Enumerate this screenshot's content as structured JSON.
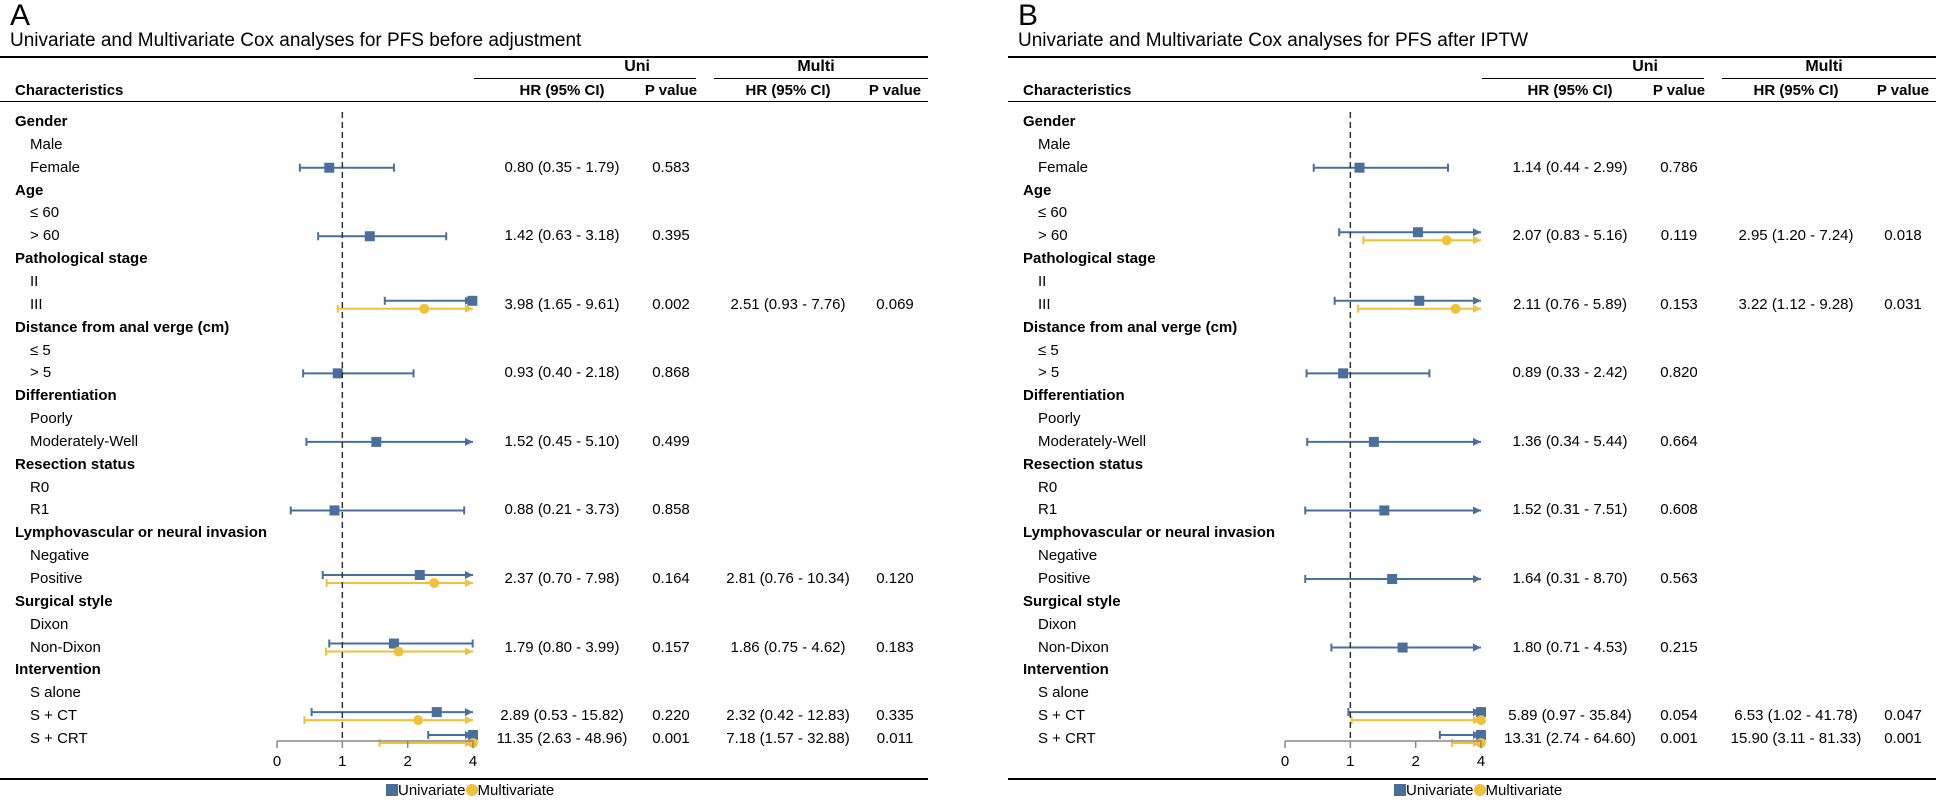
{
  "colors": {
    "uni": "#4a6f9a",
    "multi": "#f0c239",
    "ref_line": "#333333",
    "axis": "#888888"
  },
  "legend": {
    "uni": "Univariate",
    "multi": "Multivariate"
  },
  "headers": {
    "characteristics": "Characteristics",
    "uni": "Uni",
    "multi": "Multi",
    "hr": "HR (95% CI)",
    "p": "P value"
  },
  "chart_data": [
    {
      "type": "forest",
      "panel": "A",
      "title": "Univariate and Multivariate Cox analyses for PFS before adjustment",
      "x_ticks": [
        0,
        1,
        2,
        4
      ],
      "xlim": [
        0,
        4
      ],
      "reference": 1,
      "rows": [
        {
          "label": "Gender",
          "category": true
        },
        {
          "label": "Male"
        },
        {
          "label": "Female",
          "uni": {
            "hr": 0.8,
            "lo": 0.35,
            "hi": 1.79,
            "text": "0.80 (0.35 - 1.79)",
            "p": "0.583"
          }
        },
        {
          "label": "Age",
          "category": true
        },
        {
          "label": "≤ 60"
        },
        {
          "label": "> 60",
          "uni": {
            "hr": 1.42,
            "lo": 0.63,
            "hi": 3.18,
            "text": "1.42 (0.63 - 3.18)",
            "p": "0.395"
          }
        },
        {
          "label": "Pathological stage",
          "category": true
        },
        {
          "label": "II"
        },
        {
          "label": "III",
          "uni": {
            "hr": 3.98,
            "lo": 1.65,
            "hi": 9.61,
            "text": "3.98 (1.65 - 9.61)",
            "p": "0.002"
          },
          "multi": {
            "hr": 2.51,
            "lo": 0.93,
            "hi": 7.76,
            "text": "2.51 (0.93 - 7.76)",
            "p": "0.069"
          }
        },
        {
          "label": "Distance from anal verge (cm)",
          "category": true
        },
        {
          "label": "≤ 5"
        },
        {
          "label": "> 5",
          "uni": {
            "hr": 0.93,
            "lo": 0.4,
            "hi": 2.18,
            "text": "0.93 (0.40 - 2.18)",
            "p": "0.868"
          }
        },
        {
          "label": "Differentiation",
          "category": true
        },
        {
          "label": "Poorly"
        },
        {
          "label": "Moderately-Well",
          "uni": {
            "hr": 1.52,
            "lo": 0.45,
            "hi": 5.1,
            "text": "1.52 (0.45 - 5.10)",
            "p": "0.499"
          }
        },
        {
          "label": "Resection status",
          "category": true
        },
        {
          "label": "R0"
        },
        {
          "label": "R1",
          "uni": {
            "hr": 0.88,
            "lo": 0.21,
            "hi": 3.73,
            "text": "0.88 (0.21 - 3.73)",
            "p": "0.858"
          }
        },
        {
          "label": "Lymphovascular or neural invasion",
          "category": true
        },
        {
          "label": "Negative"
        },
        {
          "label": "Positive",
          "uni": {
            "hr": 2.37,
            "lo": 0.7,
            "hi": 7.98,
            "text": "2.37 (0.70 - 7.98)",
            "p": "0.164"
          },
          "multi": {
            "hr": 2.81,
            "lo": 0.76,
            "hi": 10.34,
            "text": "2.81 (0.76 - 10.34)",
            "p": "0.120"
          }
        },
        {
          "label": "Surgical style",
          "category": true
        },
        {
          "label": "Dixon"
        },
        {
          "label": "Non-Dixon",
          "uni": {
            "hr": 1.79,
            "lo": 0.8,
            "hi": 3.99,
            "text": "1.79 (0.80 - 3.99)",
            "p": "0.157"
          },
          "multi": {
            "hr": 1.86,
            "lo": 0.75,
            "hi": 4.62,
            "text": "1.86 (0.75 - 4.62)",
            "p": "0.183"
          }
        },
        {
          "label": "Intervention",
          "category": true
        },
        {
          "label": "S alone"
        },
        {
          "label": "S + CT",
          "uni": {
            "hr": 2.89,
            "lo": 0.53,
            "hi": 15.82,
            "text": "2.89 (0.53 - 15.82)",
            "p": "0.220"
          },
          "multi": {
            "hr": 2.32,
            "lo": 0.42,
            "hi": 12.83,
            "text": "2.32 (0.42 - 12.83)",
            "p": "0.335"
          }
        },
        {
          "label": "S + CRT",
          "uni": {
            "hr": 11.35,
            "lo": 2.63,
            "hi": 48.96,
            "text": "11.35 (2.63 - 48.96)",
            "p": "0.001"
          },
          "multi": {
            "hr": 7.18,
            "lo": 1.57,
            "hi": 32.88,
            "text": "7.18 (1.57 - 32.88)",
            "p": "0.011"
          }
        }
      ]
    },
    {
      "type": "forest",
      "panel": "B",
      "title": "Univariate and Multivariate Cox analyses for PFS after IPTW",
      "x_ticks": [
        0,
        1,
        2,
        4
      ],
      "xlim": [
        0,
        4
      ],
      "reference": 1,
      "rows": [
        {
          "label": "Gender",
          "category": true
        },
        {
          "label": "Male"
        },
        {
          "label": "Female",
          "uni": {
            "hr": 1.14,
            "lo": 0.44,
            "hi": 2.99,
            "text": "1.14 (0.44 - 2.99)",
            "p": "0.786"
          }
        },
        {
          "label": "Age",
          "category": true
        },
        {
          "label": "≤ 60"
        },
        {
          "label": "> 60",
          "uni": {
            "hr": 2.07,
            "lo": 0.83,
            "hi": 5.16,
            "text": "2.07 (0.83 - 5.16)",
            "p": "0.119"
          },
          "multi": {
            "hr": 2.95,
            "lo": 1.2,
            "hi": 7.24,
            "text": "2.95 (1.20 - 7.24)",
            "p": "0.018"
          }
        },
        {
          "label": "Pathological stage",
          "category": true
        },
        {
          "label": "II"
        },
        {
          "label": "III",
          "uni": {
            "hr": 2.11,
            "lo": 0.76,
            "hi": 5.89,
            "text": "2.11 (0.76 - 5.89)",
            "p": "0.153"
          },
          "multi": {
            "hr": 3.22,
            "lo": 1.12,
            "hi": 9.28,
            "text": "3.22 (1.12 - 9.28)",
            "p": "0.031"
          }
        },
        {
          "label": "Distance from anal verge (cm)",
          "category": true
        },
        {
          "label": "≤ 5"
        },
        {
          "label": "> 5",
          "uni": {
            "hr": 0.89,
            "lo": 0.33,
            "hi": 2.42,
            "text": "0.89 (0.33 - 2.42)",
            "p": "0.820"
          }
        },
        {
          "label": "Differentiation",
          "category": true
        },
        {
          "label": "Poorly"
        },
        {
          "label": "Moderately-Well",
          "uni": {
            "hr": 1.36,
            "lo": 0.34,
            "hi": 5.44,
            "text": "1.36 (0.34 - 5.44)",
            "p": "0.664"
          }
        },
        {
          "label": "Resection status",
          "category": true
        },
        {
          "label": "R0"
        },
        {
          "label": "R1",
          "uni": {
            "hr": 1.52,
            "lo": 0.31,
            "hi": 7.51,
            "text": "1.52 (0.31 - 7.51)",
            "p": "0.608"
          }
        },
        {
          "label": "Lymphovascular or neural invasion",
          "category": true
        },
        {
          "label": "Negative"
        },
        {
          "label": "Positive",
          "uni": {
            "hr": 1.64,
            "lo": 0.31,
            "hi": 8.7,
            "text": "1.64 (0.31 - 8.70)",
            "p": "0.563"
          }
        },
        {
          "label": "Surgical style",
          "category": true
        },
        {
          "label": "Dixon"
        },
        {
          "label": "Non-Dixon",
          "uni": {
            "hr": 1.8,
            "lo": 0.71,
            "hi": 4.53,
            "text": "1.80 (0.71 - 4.53)",
            "p": "0.215"
          }
        },
        {
          "label": "Intervention",
          "category": true
        },
        {
          "label": "S alone"
        },
        {
          "label": "S + CT",
          "uni": {
            "hr": 5.89,
            "lo": 0.97,
            "hi": 35.84,
            "text": "5.89 (0.97 - 35.84)",
            "p": "0.054"
          },
          "multi": {
            "hr": 6.53,
            "lo": 1.02,
            "hi": 41.78,
            "text": "6.53 (1.02 - 41.78)",
            "p": "0.047"
          }
        },
        {
          "label": "S + CRT",
          "uni": {
            "hr": 13.31,
            "lo": 2.74,
            "hi": 64.6,
            "text": "13.31 (2.74 - 64.60)",
            "p": "0.001"
          },
          "multi": {
            "hr": 15.9,
            "lo": 3.11,
            "hi": 81.33,
            "text": "15.90 (3.11 - 81.33)",
            "p": "0.001"
          }
        }
      ]
    }
  ]
}
